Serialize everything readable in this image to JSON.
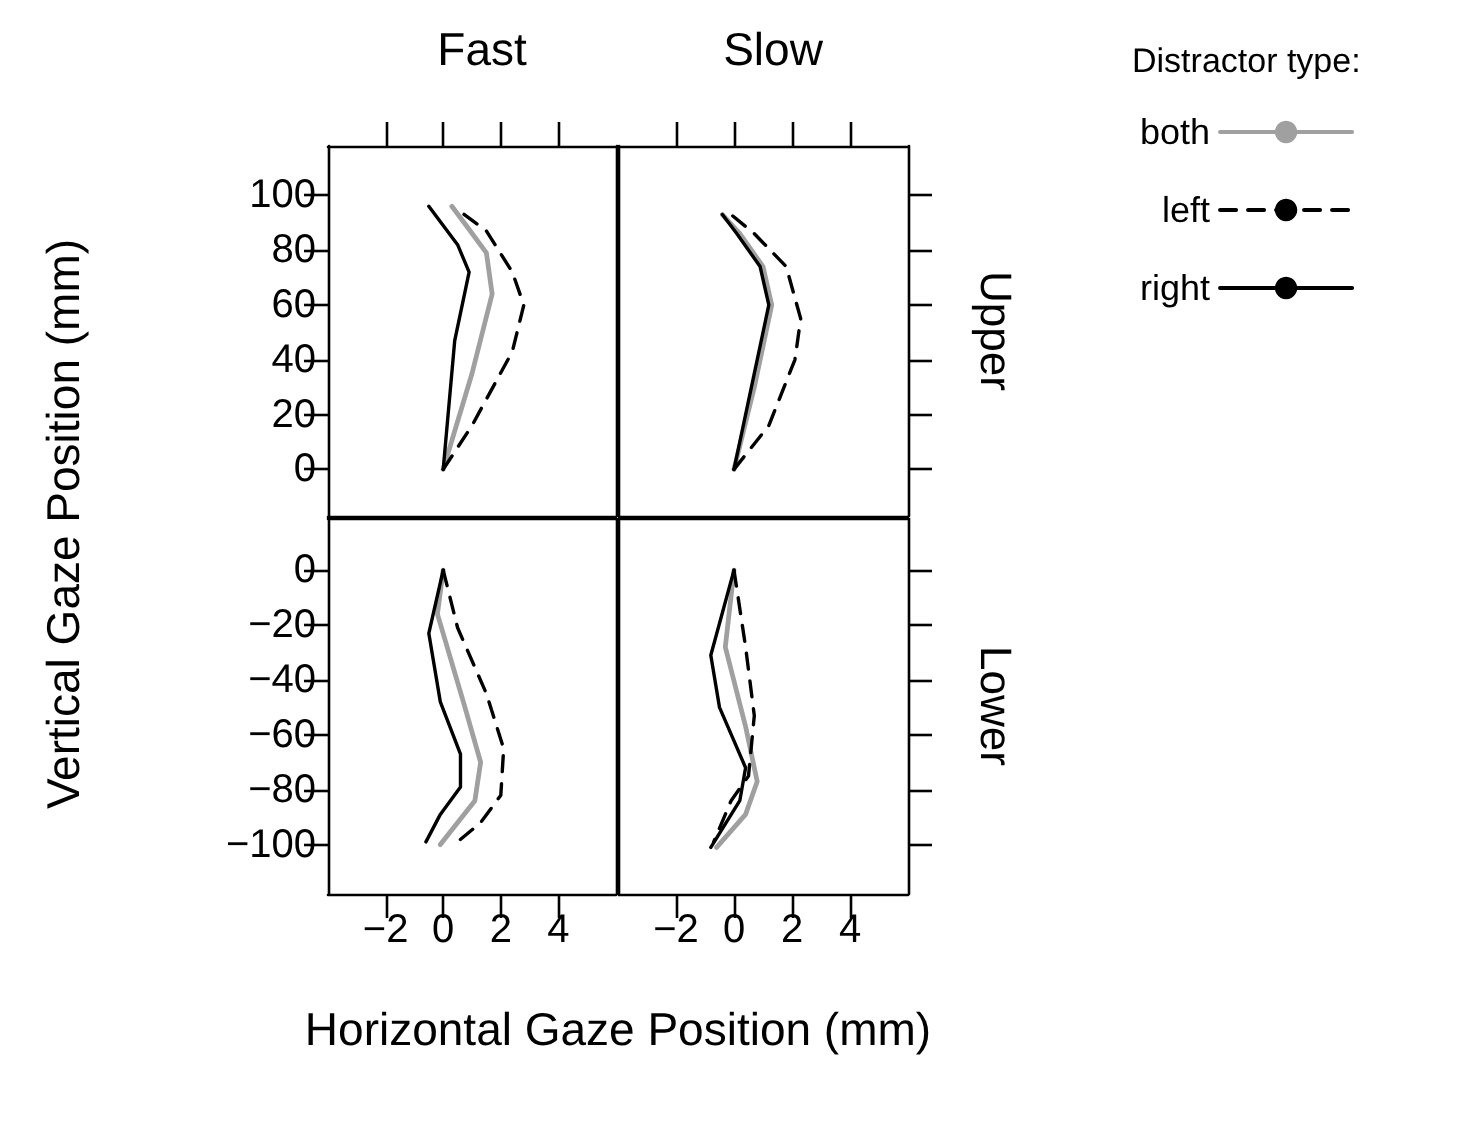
{
  "chart_data": [
    {
      "type": "line",
      "title": "Fast",
      "ylabel": "Vertical Gaze Position (mm)",
      "xlim": [
        -4,
        6
      ],
      "xticks": [
        -2,
        0,
        2,
        4
      ],
      "ylim": [
        -17,
        118
      ],
      "yticks": [
        0,
        20,
        40,
        60,
        80,
        100
      ],
      "tick_labels": "y",
      "marker": "none",
      "series": [
        {
          "color": "#a0a0a0",
          "line_style": "solid",
          "x": [
            0,
            1.0,
            1.7,
            1.5,
            0.8,
            0.3
          ],
          "values": [
            0,
            35,
            64,
            79,
            89,
            96
          ]
        },
        {
          "color": "#000000",
          "line_style": "dashed",
          "x": [
            0,
            1.0,
            2.4,
            2.8,
            2.4,
            1.5,
            0.6
          ],
          "values": [
            0,
            16,
            43,
            60,
            72,
            87,
            94
          ]
        },
        {
          "color": "#000000",
          "line_style": "solid",
          "x": [
            0,
            0.4,
            0.9,
            0.5,
            -0.5
          ],
          "values": [
            0,
            47,
            72,
            82,
            96
          ]
        }
      ]
    },
    {
      "type": "line",
      "title": "Slow",
      "annotations": [
        "Upper"
      ],
      "legend": "right",
      "legend_title": "Distractor type:",
      "xlim": [
        -4,
        6
      ],
      "xticks": [
        -2,
        0,
        2,
        4
      ],
      "ylim": [
        -17,
        118
      ],
      "yticks": [
        0,
        20,
        40,
        60,
        80,
        100
      ],
      "tick_labels": false,
      "marker": "none",
      "series": [
        {
          "name": "both",
          "color": "#a0a0a0",
          "line_style": "solid",
          "x": [
            0,
            0.7,
            1.3,
            1.0,
            0.2,
            -0.4
          ],
          "values": [
            0,
            30,
            60,
            74,
            86,
            93
          ]
        },
        {
          "name": "left",
          "color": "#000000",
          "line_style": "dashed",
          "x": [
            0,
            1.2,
            2.1,
            2.3,
            1.8,
            0.7,
            -0.1
          ],
          "values": [
            0,
            16,
            40,
            55,
            74,
            86,
            93
          ]
        },
        {
          "name": "right",
          "color": "#000000",
          "line_style": "solid",
          "x": [
            0,
            0.6,
            1.2,
            0.9,
            0.1,
            -0.4
          ],
          "values": [
            0,
            30,
            60,
            74,
            86,
            93
          ]
        }
      ]
    },
    {
      "type": "line",
      "xlabel": "Horizontal Gaze Position (mm)",
      "xlim": [
        -4,
        6
      ],
      "xticks": [
        {
          "value": -2,
          "label": "−2"
        },
        0,
        2,
        4
      ],
      "ylim": [
        -118,
        19
      ],
      "yticks": [
        {
          "value": -100,
          "label": "−100"
        },
        {
          "value": -80,
          "label": "−80"
        },
        {
          "value": -60,
          "label": "−60"
        },
        {
          "value": -40,
          "label": "−40"
        },
        {
          "value": -20,
          "label": "−20"
        },
        0
      ],
      "marker": "none",
      "series": [
        {
          "color": "#a0a0a0",
          "line_style": "solid",
          "x": [
            0,
            -0.2,
            0.7,
            1.3,
            1.1,
            -0.1
          ],
          "values": [
            0,
            -16,
            -48,
            -70,
            -84,
            -100
          ]
        },
        {
          "color": "#000000",
          "line_style": "dashed",
          "x": [
            0,
            0.5,
            1.5,
            2.1,
            2.0,
            1.3,
            0.5
          ],
          "values": [
            0,
            -21,
            -45,
            -65,
            -82,
            -92,
            -99
          ]
        },
        {
          "color": "#000000",
          "line_style": "solid",
          "x": [
            0,
            -0.5,
            -0.1,
            0.6,
            0.6,
            -0.1,
            -0.6
          ],
          "values": [
            0,
            -23,
            -48,
            -67,
            -79,
            -89,
            -99
          ]
        }
      ]
    },
    {
      "type": "line",
      "annotations": [
        "Lower"
      ],
      "xlim": [
        -4,
        6
      ],
      "xticks": [
        {
          "value": -2,
          "label": "−2"
        },
        0,
        2,
        4
      ],
      "ylim": [
        -118,
        19
      ],
      "yticks": [
        -100,
        -80,
        -60,
        -40,
        -20,
        0
      ],
      "tick_labels": "x",
      "marker": "none",
      "series": [
        {
          "color": "#a0a0a0",
          "line_style": "solid",
          "x": [
            0,
            -0.3,
            0.4,
            0.8,
            0.4,
            -0.6
          ],
          "values": [
            0,
            -28,
            -57,
            -77,
            -89,
            -101
          ]
        },
        {
          "color": "#000000",
          "line_style": "dashed",
          "x": [
            0,
            0.4,
            0.7,
            0.5,
            -0.1,
            -0.7
          ],
          "values": [
            0,
            -28,
            -53,
            -75,
            -84,
            -99
          ]
        },
        {
          "color": "#000000",
          "line_style": "solid",
          "x": [
            0,
            -0.8,
            -0.5,
            0.4,
            0.2,
            -0.8
          ],
          "values": [
            0,
            -31,
            -50,
            -72,
            -84,
            -101
          ]
        }
      ]
    }
  ]
}
